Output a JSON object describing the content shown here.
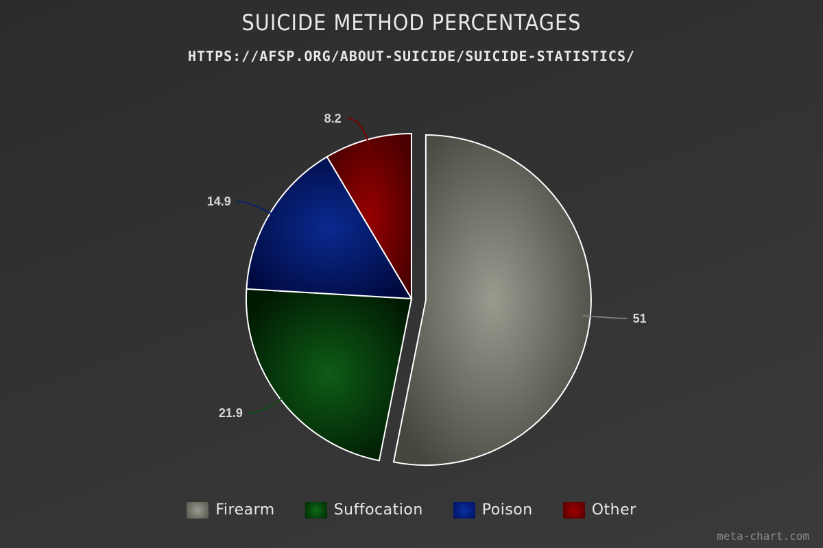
{
  "chart_data": {
    "type": "pie",
    "title": "SUICIDE METHOD PERCENTAGES",
    "subtitle": "HTTPS://AFSP.ORG/ABOUT-SUICIDE/SUICIDE-STATISTICS/",
    "categories": [
      "Firearm",
      "Suffocation",
      "Poison",
      "Other"
    ],
    "values": [
      51,
      21.9,
      14.9,
      8.2
    ],
    "data_labels": [
      "51",
      "21.9",
      "14.9",
      "8.2"
    ],
    "exploded": "Firearm",
    "colors": [
      "#7a7b70",
      "#0a4a10",
      "#0a2070",
      "#7a0000"
    ],
    "legend_position": "bottom",
    "watermark": "meta-chart.com"
  },
  "legend": {
    "items": [
      {
        "label": "Firearm",
        "color": "#7a7b70"
      },
      {
        "label": "Suffocation",
        "color": "#0a4a10"
      },
      {
        "label": "Poison",
        "color": "#0a2070"
      },
      {
        "label": "Other",
        "color": "#7a0000"
      }
    ]
  }
}
